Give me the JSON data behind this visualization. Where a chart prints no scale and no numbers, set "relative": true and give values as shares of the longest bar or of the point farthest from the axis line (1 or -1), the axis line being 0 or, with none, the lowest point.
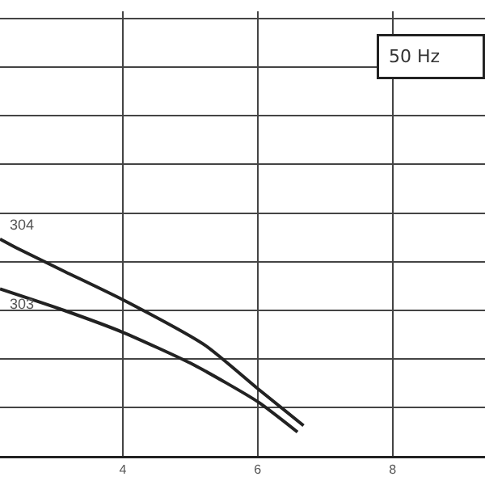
{
  "chart_data": {
    "type": "line",
    "relative": true,
    "xlim": [
      2.18,
      9.37
    ],
    "xticks": [
      4,
      6,
      8
    ],
    "grid": true,
    "legend": false,
    "marker": "none",
    "line_style": "solid",
    "annotations": [
      "50 Hz"
    ],
    "series": [
      {
        "name": "304",
        "color": "#222222",
        "x": [
          2.18,
          2.42,
          3.14,
          4.0,
          5.22,
          6.0,
          6.68
        ],
        "values": [
          1,
          0.96,
          0.85,
          0.72,
          0.51,
          0.31,
          0.14
        ]
      },
      {
        "name": "303",
        "color": "#222222",
        "x": [
          2.18,
          3.14,
          4.0,
          5.05,
          6.0,
          6.59
        ],
        "values": [
          0.77,
          0.67,
          0.57,
          0.42,
          0.25,
          0.11
        ]
      }
    ]
  }
}
